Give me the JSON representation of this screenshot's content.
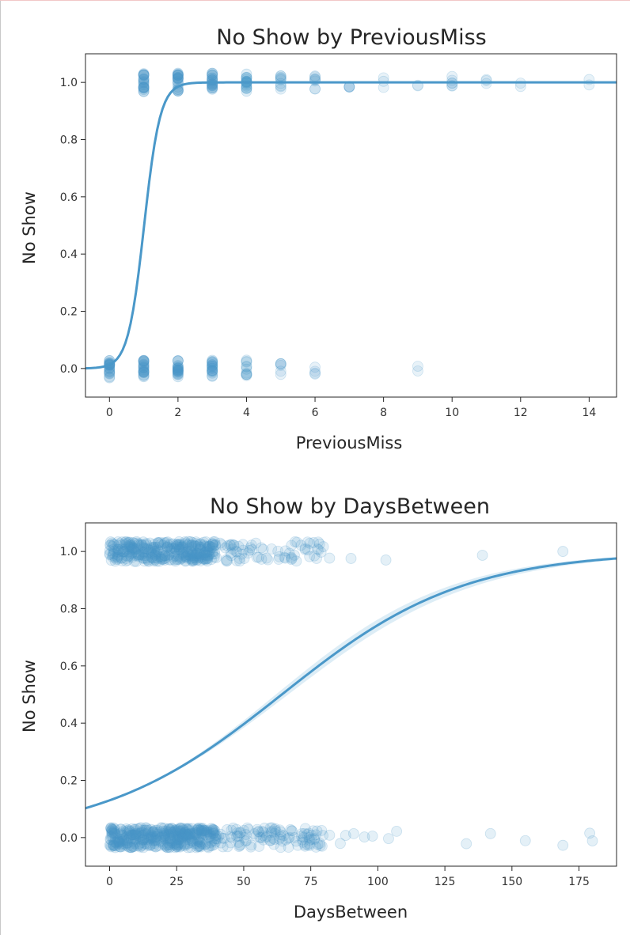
{
  "chart_data": [
    {
      "type": "scatter",
      "title": "No Show by PreviousMiss",
      "xlabel": "PreviousMiss",
      "ylabel": "No Show",
      "xlim": [
        -0.7,
        14.8
      ],
      "ylim": [
        -0.1,
        1.1
      ],
      "xticks": [
        0,
        2,
        4,
        6,
        8,
        10,
        12,
        14
      ],
      "yticks": [
        0.0,
        0.2,
        0.4,
        0.6,
        0.8,
        1.0
      ],
      "xtick_labels": [
        "0",
        "2",
        "4",
        "6",
        "8",
        "10",
        "12",
        "14"
      ],
      "ytick_labels": [
        "0.0",
        "0.2",
        "0.4",
        "0.6",
        "0.8",
        "1.0"
      ],
      "point_color": "#4a98c9",
      "line_color": "#4a98c9",
      "series": [
        {
          "points": [
            {
              "x": 0,
              "y": 0,
              "density": 1.0
            },
            {
              "x": 1,
              "y": 0,
              "density": 1.0
            },
            {
              "x": 2,
              "y": 0,
              "density": 1.0
            },
            {
              "x": 3,
              "y": 0,
              "density": 0.9
            },
            {
              "x": 4,
              "y": 0,
              "density": 0.5
            },
            {
              "x": 5,
              "y": 0,
              "density": 0.25
            },
            {
              "x": 6,
              "y": 0,
              "density": 0.2
            },
            {
              "x": 9,
              "y": 0,
              "density": 0.1
            },
            {
              "x": 1,
              "y": 1,
              "density": 1.0
            },
            {
              "x": 2,
              "y": 1,
              "density": 1.0
            },
            {
              "x": 3,
              "y": 1,
              "density": 1.0
            },
            {
              "x": 4,
              "y": 1,
              "density": 0.8
            },
            {
              "x": 5,
              "y": 1,
              "density": 0.45
            },
            {
              "x": 6,
              "y": 1,
              "density": 0.35
            },
            {
              "x": 7,
              "y": 1,
              "density": 0.2
            },
            {
              "x": 8,
              "y": 1,
              "density": 0.15
            },
            {
              "x": 9,
              "y": 1,
              "density": 0.1
            },
            {
              "x": 10,
              "y": 1,
              "density": 0.25
            },
            {
              "x": 11,
              "y": 1,
              "density": 0.15
            },
            {
              "x": 12,
              "y": 1,
              "density": 0.1
            },
            {
              "x": 14,
              "y": 1,
              "density": 0.1
            }
          ]
        }
      ],
      "logistic_fit": {
        "intercept": -4.3,
        "slope": 4.25,
        "ci_half_width": 0.0
      }
    },
    {
      "type": "scatter",
      "title": "No Show by DaysBetween",
      "xlabel": "DaysBetween",
      "ylabel": "No Show",
      "xlim": [
        -9,
        189
      ],
      "ylim": [
        -0.1,
        1.1
      ],
      "xticks": [
        0,
        25,
        50,
        75,
        100,
        125,
        150,
        175
      ],
      "yticks": [
        0.0,
        0.2,
        0.4,
        0.6,
        0.8,
        1.0
      ],
      "xtick_labels": [
        "0",
        "25",
        "50",
        "75",
        "100",
        "125",
        "150",
        "175"
      ],
      "ytick_labels": [
        "0.0",
        "0.2",
        "0.4",
        "0.6",
        "0.8",
        "1.0"
      ],
      "point_color": "#4a98c9",
      "line_color": "#4a98c9",
      "band_color": "#9fcbe6",
      "series": [
        {
          "dense_ranges": [
            {
              "y": 0,
              "from": 0,
              "to": 40,
              "count": 420
            },
            {
              "y": 0,
              "from": 40,
              "to": 80,
              "count": 110
            },
            {
              "y": 1,
              "from": 0,
              "to": 40,
              "count": 360
            },
            {
              "y": 1,
              "from": 40,
              "to": 80,
              "count": 70
            }
          ],
          "sparse_points": [
            {
              "x": 82,
              "y": 0
            },
            {
              "x": 86,
              "y": 0
            },
            {
              "x": 88,
              "y": 0
            },
            {
              "x": 91,
              "y": 0
            },
            {
              "x": 95,
              "y": 0
            },
            {
              "x": 98,
              "y": 0
            },
            {
              "x": 104,
              "y": 0
            },
            {
              "x": 107,
              "y": 0
            },
            {
              "x": 133,
              "y": 0
            },
            {
              "x": 142,
              "y": 0
            },
            {
              "x": 155,
              "y": 0
            },
            {
              "x": 169,
              "y": 0
            },
            {
              "x": 179,
              "y": 0
            },
            {
              "x": 180,
              "y": 0
            },
            {
              "x": 82,
              "y": 1
            },
            {
              "x": 90,
              "y": 1
            },
            {
              "x": 103,
              "y": 1
            },
            {
              "x": 139,
              "y": 1
            },
            {
              "x": 169,
              "y": 1
            }
          ]
        }
      ],
      "logistic_fit": {
        "intercept": -1.9,
        "slope": 0.0296,
        "ci_half_width": 0.2
      }
    }
  ]
}
